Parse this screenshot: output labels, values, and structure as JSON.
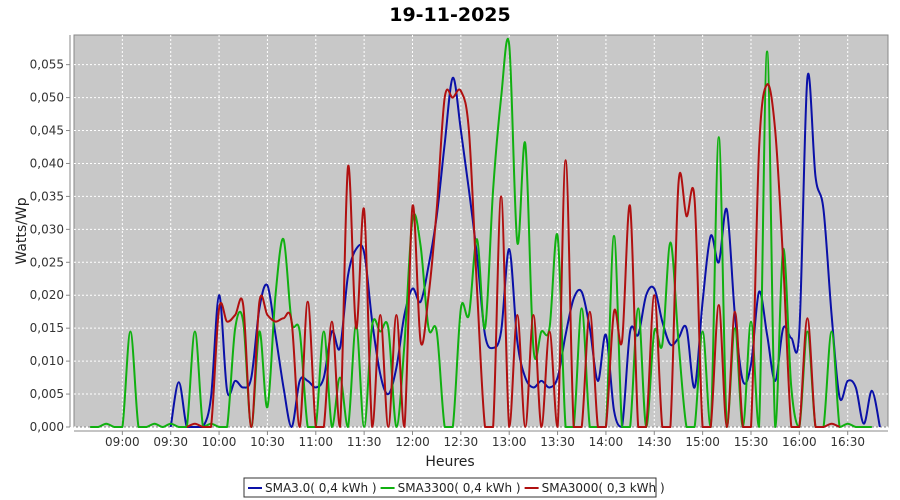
{
  "chart_data": {
    "type": "line",
    "title": "19-11-2025",
    "xlabel": "Heures",
    "ylabel": "Watts/Wp",
    "x_ticks": [
      "09:00",
      "09:30",
      "10:00",
      "10:30",
      "11:00",
      "11:30",
      "12:00",
      "12:30",
      "13:00",
      "13:30",
      "14:00",
      "14:30",
      "15:00",
      "15:30",
      "16:00",
      "16:30"
    ],
    "xlim": [
      "08:30",
      "16:55"
    ],
    "y_ticks": [
      "0,000",
      "0,005",
      "0,010",
      "0,015",
      "0,020",
      "0,025",
      "0,030",
      "0,035",
      "0,040",
      "0,045",
      "0,050",
      "0,055"
    ],
    "ylim": [
      0,
      0.0595
    ],
    "grid": true,
    "legend_position": "bottom",
    "colors": {
      "plot_background": "#c8c8c8",
      "grid": "#ffffff"
    },
    "series": [
      {
        "name": "SMA3.0",
        "legend_label": "SMA3.0( 0,4 kWh )",
        "color": "#0a10a8",
        "points": [
          [
            "09:30",
            0.0
          ],
          [
            "09:35",
            0.0068
          ],
          [
            "09:40",
            0.0
          ],
          [
            "09:45",
            0.0
          ],
          [
            "09:50",
            0.0
          ],
          [
            "09:55",
            0.0045
          ],
          [
            "10:00",
            0.02
          ],
          [
            "10:05",
            0.0055
          ],
          [
            "10:10",
            0.007
          ],
          [
            "10:15",
            0.006
          ],
          [
            "10:20",
            0.0075
          ],
          [
            "10:25",
            0.018
          ],
          [
            "10:30",
            0.0215
          ],
          [
            "10:35",
            0.014
          ],
          [
            "10:40",
            0.006
          ],
          [
            "10:45",
            0.0
          ],
          [
            "10:50",
            0.007
          ],
          [
            "10:55",
            0.007
          ],
          [
            "11:00",
            0.006
          ],
          [
            "11:05",
            0.0075
          ],
          [
            "11:10",
            0.0145
          ],
          [
            "11:15",
            0.012
          ],
          [
            "11:20",
            0.023
          ],
          [
            "11:25",
            0.027
          ],
          [
            "11:30",
            0.0265
          ],
          [
            "11:35",
            0.016
          ],
          [
            "11:40",
            0.008
          ],
          [
            "11:45",
            0.005
          ],
          [
            "11:50",
            0.009
          ],
          [
            "11:55",
            0.017
          ],
          [
            "12:00",
            0.021
          ],
          [
            "12:05",
            0.019
          ],
          [
            "12:10",
            0.0245
          ],
          [
            "12:15",
            0.032
          ],
          [
            "12:20",
            0.043
          ],
          [
            "12:25",
            0.053
          ],
          [
            "12:30",
            0.045
          ],
          [
            "12:35",
            0.036
          ],
          [
            "12:40",
            0.026
          ],
          [
            "12:45",
            0.014
          ],
          [
            "12:50",
            0.012
          ],
          [
            "12:55",
            0.0145
          ],
          [
            "13:00",
            0.027
          ],
          [
            "13:05",
            0.013
          ],
          [
            "13:10",
            0.0075
          ],
          [
            "13:15",
            0.006
          ],
          [
            "13:20",
            0.007
          ],
          [
            "13:25",
            0.006
          ],
          [
            "13:30",
            0.0075
          ],
          [
            "13:35",
            0.014
          ],
          [
            "13:40",
            0.0195
          ],
          [
            "13:45",
            0.0205
          ],
          [
            "13:50",
            0.015
          ],
          [
            "13:55",
            0.007
          ],
          [
            "14:00",
            0.014
          ],
          [
            "14:05",
            0.0025
          ],
          [
            "14:10",
            0.0
          ],
          [
            "14:15",
            0.0145
          ],
          [
            "14:20",
            0.014
          ],
          [
            "14:25",
            0.02
          ],
          [
            "14:30",
            0.021
          ],
          [
            "14:35",
            0.016
          ],
          [
            "14:40",
            0.0125
          ],
          [
            "14:45",
            0.0135
          ],
          [
            "14:50",
            0.015
          ],
          [
            "14:55",
            0.006
          ],
          [
            "15:00",
            0.019
          ],
          [
            "15:05",
            0.029
          ],
          [
            "15:10",
            0.025
          ],
          [
            "15:15",
            0.033
          ],
          [
            "15:20",
            0.017
          ],
          [
            "15:25",
            0.007
          ],
          [
            "15:30",
            0.0095
          ],
          [
            "15:35",
            0.0205
          ],
          [
            "15:40",
            0.014
          ],
          [
            "15:45",
            0.007
          ],
          [
            "15:50",
            0.015
          ],
          [
            "15:55",
            0.0135
          ],
          [
            "16:00",
            0.0145
          ],
          [
            "16:05",
            0.053
          ],
          [
            "16:10",
            0.038
          ],
          [
            "16:15",
            0.033
          ],
          [
            "16:20",
            0.017
          ],
          [
            "16:25",
            0.0045
          ],
          [
            "16:30",
            0.007
          ],
          [
            "16:35",
            0.006
          ],
          [
            "16:40",
            0.0005
          ],
          [
            "16:45",
            0.0055
          ],
          [
            "16:50",
            0.0
          ]
        ]
      },
      {
        "name": "SMA3300",
        "legend_label": "SMA3300( 0,4 kWh )",
        "color": "#10b010",
        "points": [
          [
            "08:40",
            0.0
          ],
          [
            "08:45",
            0.0
          ],
          [
            "08:50",
            0.0005
          ],
          [
            "08:55",
            0.0
          ],
          [
            "09:00",
            0.0
          ],
          [
            "09:05",
            0.0145
          ],
          [
            "09:10",
            0.0
          ],
          [
            "09:15",
            0.0
          ],
          [
            "09:20",
            0.0005
          ],
          [
            "09:25",
            0.0
          ],
          [
            "09:30",
            0.0005
          ],
          [
            "09:35",
            0.0
          ],
          [
            "09:40",
            0.0
          ],
          [
            "09:45",
            0.0145
          ],
          [
            "09:50",
            0.0
          ],
          [
            "09:55",
            0.0005
          ],
          [
            "10:00",
            0.0
          ],
          [
            "10:05",
            0.0
          ],
          [
            "10:10",
            0.015
          ],
          [
            "10:15",
            0.016
          ],
          [
            "10:20",
            0.0
          ],
          [
            "10:25",
            0.0145
          ],
          [
            "10:30",
            0.003
          ],
          [
            "10:35",
            0.02
          ],
          [
            "10:40",
            0.0285
          ],
          [
            "10:45",
            0.016
          ],
          [
            "10:50",
            0.0145
          ],
          [
            "10:55",
            0.0
          ],
          [
            "11:00",
            0.0
          ],
          [
            "11:05",
            0.0145
          ],
          [
            "11:10",
            0.0
          ],
          [
            "11:15",
            0.0075
          ],
          [
            "11:20",
            0.0
          ],
          [
            "11:25",
            0.0155
          ],
          [
            "11:30",
            0.0
          ],
          [
            "11:35",
            0.0155
          ],
          [
            "11:40",
            0.0145
          ],
          [
            "11:45",
            0.015
          ],
          [
            "11:50",
            0.0
          ],
          [
            "11:55",
            0.0125
          ],
          [
            "12:00",
            0.0315
          ],
          [
            "12:05",
            0.0275
          ],
          [
            "12:10",
            0.015
          ],
          [
            "12:15",
            0.0145
          ],
          [
            "12:20",
            0.0
          ],
          [
            "12:25",
            0.0
          ],
          [
            "12:30",
            0.018
          ],
          [
            "12:35",
            0.017
          ],
          [
            "12:40",
            0.0285
          ],
          [
            "12:45",
            0.015
          ],
          [
            "12:50",
            0.036
          ],
          [
            "12:55",
            0.05
          ],
          [
            "13:00",
            0.058
          ],
          [
            "13:05",
            0.028
          ],
          [
            "13:10",
            0.043
          ],
          [
            "13:15",
            0.012
          ],
          [
            "13:20",
            0.0145
          ],
          [
            "13:25",
            0.015
          ],
          [
            "13:30",
            0.029
          ],
          [
            "13:35",
            0.0
          ],
          [
            "13:40",
            0.0
          ],
          [
            "13:45",
            0.018
          ],
          [
            "13:50",
            0.0
          ],
          [
            "13:55",
            0.0
          ],
          [
            "14:00",
            0.0
          ],
          [
            "14:05",
            0.029
          ],
          [
            "14:10",
            0.0
          ],
          [
            "14:15",
            0.0
          ],
          [
            "14:20",
            0.018
          ],
          [
            "14:25",
            0.0
          ],
          [
            "14:30",
            0.0145
          ],
          [
            "14:35",
            0.0125
          ],
          [
            "14:40",
            0.028
          ],
          [
            "14:45",
            0.013
          ],
          [
            "14:50",
            0.0
          ],
          [
            "14:55",
            0.0
          ],
          [
            "15:00",
            0.0145
          ],
          [
            "15:05",
            0.0
          ],
          [
            "15:10",
            0.044
          ],
          [
            "15:15",
            0.0
          ],
          [
            "15:20",
            0.015
          ],
          [
            "15:25",
            0.0
          ],
          [
            "15:30",
            0.016
          ],
          [
            "15:35",
            0.0
          ],
          [
            "15:40",
            0.057
          ],
          [
            "15:45",
            0.0
          ],
          [
            "15:50",
            0.027
          ],
          [
            "15:55",
            0.006
          ],
          [
            "16:00",
            0.0
          ],
          [
            "16:05",
            0.0145
          ],
          [
            "16:10",
            0.0
          ],
          [
            "16:15",
            0.0
          ],
          [
            "16:20",
            0.0145
          ],
          [
            "16:25",
            0.0
          ],
          [
            "16:30",
            0.0005
          ],
          [
            "16:35",
            0.0
          ],
          [
            "16:40",
            0.0
          ],
          [
            "16:45",
            0.0
          ]
        ]
      },
      {
        "name": "SMA3000",
        "legend_label": "SMA3000( 0,3 kWh )",
        "color": "#b01010",
        "points": [
          [
            "09:40",
            0.0
          ],
          [
            "09:45",
            0.0005
          ],
          [
            "09:50",
            0.0
          ],
          [
            "09:55",
            0.0
          ],
          [
            "10:00",
            0.018
          ],
          [
            "10:05",
            0.016
          ],
          [
            "10:10",
            0.017
          ],
          [
            "10:15",
            0.0185
          ],
          [
            "10:20",
            0.0
          ],
          [
            "10:25",
            0.019
          ],
          [
            "10:30",
            0.017
          ],
          [
            "10:35",
            0.016
          ],
          [
            "10:40",
            0.0165
          ],
          [
            "10:45",
            0.016
          ],
          [
            "10:50",
            0.0
          ],
          [
            "10:55",
            0.019
          ],
          [
            "11:00",
            0.0
          ],
          [
            "11:05",
            0.0
          ],
          [
            "11:10",
            0.016
          ],
          [
            "11:15",
            0.0
          ],
          [
            "11:20",
            0.0395
          ],
          [
            "11:25",
            0.015
          ],
          [
            "11:30",
            0.033
          ],
          [
            "11:35",
            0.0
          ],
          [
            "11:40",
            0.017
          ],
          [
            "11:45",
            0.0
          ],
          [
            "11:50",
            0.017
          ],
          [
            "11:55",
            0.0
          ],
          [
            "12:00",
            0.0335
          ],
          [
            "12:05",
            0.013
          ],
          [
            "12:10",
            0.02
          ],
          [
            "12:15",
            0.033
          ],
          [
            "12:20",
            0.05
          ],
          [
            "12:25",
            0.05
          ],
          [
            "12:30",
            0.051
          ],
          [
            "12:35",
            0.045
          ],
          [
            "12:40",
            0.021
          ],
          [
            "12:45",
            0.0
          ],
          [
            "12:50",
            0.0
          ],
          [
            "12:55",
            0.035
          ],
          [
            "13:00",
            0.0
          ],
          [
            "13:05",
            0.017
          ],
          [
            "13:10",
            0.0
          ],
          [
            "13:15",
            0.017
          ],
          [
            "13:20",
            0.0
          ],
          [
            "13:25",
            0.0145
          ],
          [
            "13:30",
            0.0
          ],
          [
            "13:35",
            0.0405
          ],
          [
            "13:40",
            0.0
          ],
          [
            "13:45",
            0.0
          ],
          [
            "13:50",
            0.0175
          ],
          [
            "13:55",
            0.0
          ],
          [
            "14:00",
            0.0
          ],
          [
            "14:05",
            0.0175
          ],
          [
            "14:10",
            0.013
          ],
          [
            "14:15",
            0.0335
          ],
          [
            "14:20",
            0.0
          ],
          [
            "14:25",
            0.0
          ],
          [
            "14:30",
            0.02
          ],
          [
            "14:35",
            0.0
          ],
          [
            "14:40",
            0.0
          ],
          [
            "14:45",
            0.037
          ],
          [
            "14:50",
            0.032
          ],
          [
            "14:55",
            0.0345
          ],
          [
            "15:00",
            0.0
          ],
          [
            "15:05",
            0.0
          ],
          [
            "15:10",
            0.0185
          ],
          [
            "15:15",
            0.0
          ],
          [
            "15:20",
            0.0175
          ],
          [
            "15:25",
            0.0
          ],
          [
            "15:30",
            0.0
          ],
          [
            "15:35",
            0.042
          ],
          [
            "15:40",
            0.052
          ],
          [
            "15:45",
            0.045
          ],
          [
            "15:50",
            0.025
          ],
          [
            "15:55",
            0.0
          ],
          [
            "16:00",
            0.0
          ],
          [
            "16:05",
            0.0165
          ],
          [
            "16:10",
            0.0
          ],
          [
            "16:15",
            0.0
          ],
          [
            "16:20",
            0.0005
          ],
          [
            "16:25",
            0.0
          ]
        ]
      }
    ]
  }
}
